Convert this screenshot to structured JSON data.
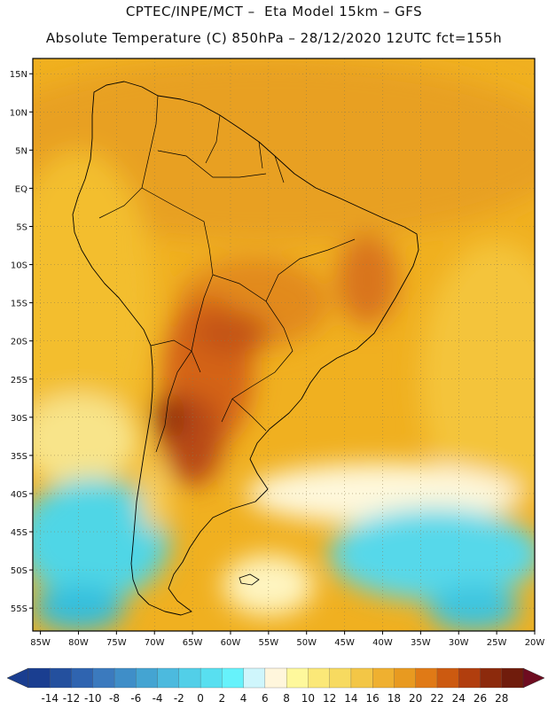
{
  "header": {
    "line1": "CPTEC/INPE/MCT –  Eta Model 15km – GFS",
    "line2": "Absolute Temperature (C) 850hPa – 28/12/2020 12UTC fct=155h"
  },
  "map": {
    "lon_range": [
      -86,
      -20
    ],
    "lat_range": [
      -58,
      17
    ],
    "lon_ticks": [
      {
        "value": -85,
        "label": "85W"
      },
      {
        "value": -80,
        "label": "80W"
      },
      {
        "value": -75,
        "label": "75W"
      },
      {
        "value": -70,
        "label": "70W"
      },
      {
        "value": -65,
        "label": "65W"
      },
      {
        "value": -60,
        "label": "60W"
      },
      {
        "value": -55,
        "label": "55W"
      },
      {
        "value": -50,
        "label": "50W"
      },
      {
        "value": -45,
        "label": "45W"
      },
      {
        "value": -40,
        "label": "40W"
      },
      {
        "value": -35,
        "label": "35W"
      },
      {
        "value": -30,
        "label": "30W"
      },
      {
        "value": -25,
        "label": "25W"
      },
      {
        "value": -20,
        "label": "20W"
      }
    ],
    "lat_ticks": [
      {
        "value": 15,
        "label": "15N"
      },
      {
        "value": 10,
        "label": "10N"
      },
      {
        "value": 5,
        "label": "5N"
      },
      {
        "value": 0,
        "label": "EQ"
      },
      {
        "value": -5,
        "label": "5S"
      },
      {
        "value": -10,
        "label": "10S"
      },
      {
        "value": -15,
        "label": "15S"
      },
      {
        "value": -20,
        "label": "20S"
      },
      {
        "value": -25,
        "label": "25S"
      },
      {
        "value": -30,
        "label": "30S"
      },
      {
        "value": -35,
        "label": "35S"
      },
      {
        "value": -40,
        "label": "40S"
      },
      {
        "value": -45,
        "label": "45S"
      },
      {
        "value": -50,
        "label": "50S"
      },
      {
        "value": -55,
        "label": "55S"
      }
    ],
    "background_color": "#f0b020",
    "field_regions": [
      {
        "name": "northern-warm-band",
        "color": "#e8a020",
        "lon": -55,
        "lat": 5,
        "rx_deg": 40,
        "ry_deg": 12
      },
      {
        "name": "pacific-tropical",
        "color": "#f3be2e",
        "lon": -80,
        "lat": -15,
        "rx_deg": 10,
        "ry_deg": 20
      },
      {
        "name": "atlantic-subtropical",
        "color": "#f4c43a",
        "lon": -25,
        "lat": -25,
        "rx_deg": 10,
        "ry_deg": 18
      },
      {
        "name": "pacific-cool",
        "color": "#f8e48a",
        "lon": -80,
        "lat": -33,
        "rx_deg": 8,
        "ry_deg": 6
      },
      {
        "name": "south-atlantic-pale",
        "color": "#fef8dc",
        "lon": -40,
        "lat": -40,
        "rx_deg": 18,
        "ry_deg": 4
      },
      {
        "name": "southern-ocean-cyan-west",
        "color": "#4fd6e6",
        "lon": -78,
        "lat": -46,
        "rx_deg": 10,
        "ry_deg": 8
      },
      {
        "name": "southern-ocean-cyan-east",
        "color": "#56d8ea",
        "lon": -33,
        "lat": -48,
        "rx_deg": 14,
        "ry_deg": 6
      },
      {
        "name": "southern-ocean-blue-west",
        "color": "#35bedc",
        "lon": -80,
        "lat": -55,
        "rx_deg": 6,
        "ry_deg": 3
      },
      {
        "name": "southern-ocean-blue-east",
        "color": "#3ec4de",
        "lon": -28,
        "lat": -55,
        "rx_deg": 6,
        "ry_deg": 3
      },
      {
        "name": "patagonia-pale",
        "color": "#fef4c0",
        "lon": -55,
        "lat": -52,
        "rx_deg": 6,
        "ry_deg": 4
      },
      {
        "name": "brazil-central-warm",
        "color": "#e28a1a",
        "lon": -57,
        "lat": -15,
        "rx_deg": 10,
        "ry_deg": 6
      },
      {
        "name": "chaco-hot",
        "color": "#d46418",
        "lon": -63,
        "lat": -24,
        "rx_deg": 6,
        "ry_deg": 10
      },
      {
        "name": "northeast-brazil-hot",
        "color": "#d9741a",
        "lon": -42,
        "lat": -12,
        "rx_deg": 4,
        "ry_deg": 6
      },
      {
        "name": "pantanal-hot",
        "color": "#c45414",
        "lon": -60,
        "lat": -19,
        "rx_deg": 5,
        "ry_deg": 3
      },
      {
        "name": "pampas-hot",
        "color": "#b84812",
        "lon": -65,
        "lat": -33,
        "rx_deg": 4,
        "ry_deg": 6
      },
      {
        "name": "cuyo-hottest",
        "color": "#8c2c10",
        "lon": -68,
        "lat": -30,
        "rx_deg": 2,
        "ry_deg": 3
      },
      {
        "name": "andes-cool",
        "color": "#f8d060",
        "lon": -70,
        "lat": -40,
        "rx_deg": 2,
        "ry_deg": 5
      }
    ]
  },
  "colorbar": {
    "labels": [
      "-14",
      "-12",
      "-10",
      "-8",
      "-6",
      "-4",
      "-2",
      "0",
      "2",
      "4",
      "6",
      "8",
      "10",
      "12",
      "14",
      "16",
      "18",
      "20",
      "22",
      "24",
      "26",
      "28"
    ],
    "colors": [
      "#1a3e90",
      "#24509e",
      "#2f64b0",
      "#3b7abe",
      "#3f8ec8",
      "#44a4d2",
      "#4cbade",
      "#52cfe8",
      "#58dff0",
      "#66f2fb",
      "#cff6fc",
      "#fff6dc",
      "#fef89c",
      "#fbe878",
      "#f7da60",
      "#f3c646",
      "#efb030",
      "#e89a20",
      "#e07a16",
      "#cc5a10",
      "#b13e0e",
      "#8c2a0c",
      "#701c0c"
    ],
    "low_arrow_color": "#1a3e90",
    "high_arrow_color": "#6e0c20"
  }
}
